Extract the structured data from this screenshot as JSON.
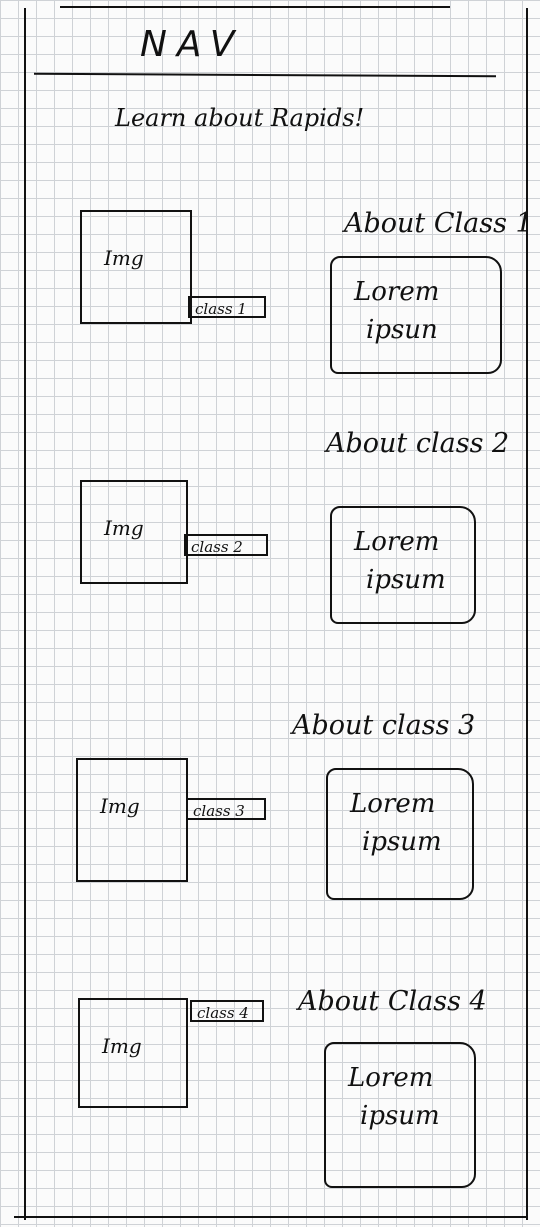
{
  "nav": {
    "title": "NAV"
  },
  "heading": "Learn about Rapids!",
  "sections": [
    {
      "img_label": "Img",
      "class_label": "class 1",
      "about_title": "About Class 1",
      "lorem_line1": "Lorem",
      "lorem_line2": "ipsun"
    },
    {
      "img_label": "Img",
      "class_label": "class 2",
      "about_title": "About class 2",
      "lorem_line1": "Lorem",
      "lorem_line2": "ipsum"
    },
    {
      "img_label": "Img",
      "class_label": "class 3",
      "about_title": "About class 3",
      "lorem_line1": "Lorem",
      "lorem_line2": "ipsum"
    },
    {
      "img_label": "Img",
      "class_label": "class 4",
      "about_title": "About Class 4",
      "lorem_line1": "Lorem",
      "lorem_line2": "ipsum"
    }
  ]
}
